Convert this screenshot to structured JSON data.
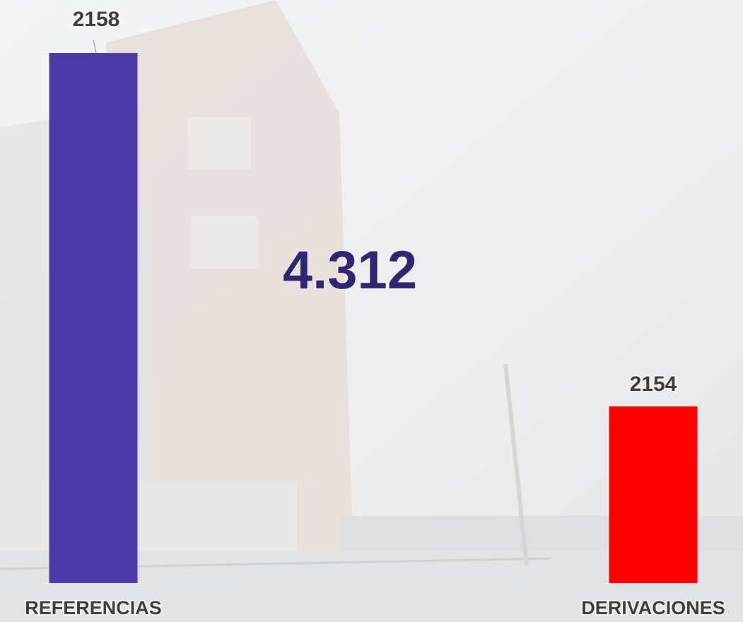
{
  "chart_data": {
    "type": "bar",
    "categories": [
      "REFERENCIAS",
      "DERIVACIONES"
    ],
    "values": [
      2158,
      2154
    ],
    "colors": [
      "#4b3aa6",
      "#ff0000"
    ],
    "ylim": [
      2152,
      2158
    ],
    "annotation": "4.312"
  }
}
